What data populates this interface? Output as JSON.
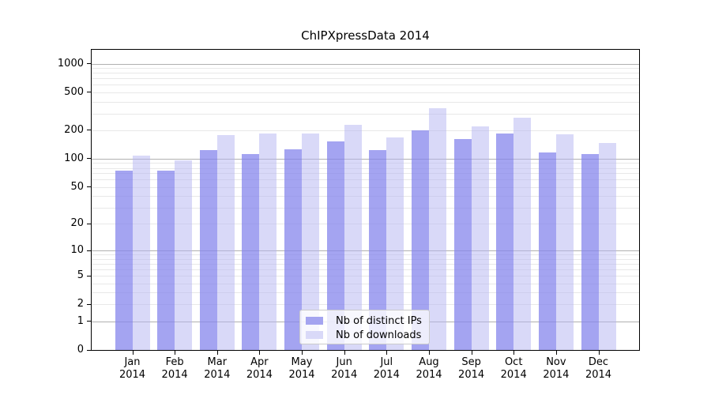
{
  "chart_data": {
    "type": "bar",
    "title": "ChIPXpressData 2014",
    "categories": [
      "Jan",
      "Feb",
      "Mar",
      "Apr",
      "May",
      "Jun",
      "Jul",
      "Aug",
      "Sep",
      "Oct",
      "Nov",
      "Dec"
    ],
    "x_tick_second_line": "2014",
    "series": [
      {
        "name": "Nb of distinct IPs",
        "values": [
          75,
          75,
          123,
          112,
          126,
          154,
          123,
          200,
          161,
          186,
          116,
          112
        ],
        "fill": "rgba(134,134,236,0.75)",
        "swatch": "#a4a4f0"
      },
      {
        "name": "Nb of downloads",
        "values": [
          109,
          96,
          178,
          184,
          184,
          230,
          168,
          340,
          218,
          273,
          181,
          147
        ],
        "fill": "rgba(180,180,242,0.5)",
        "swatch": "#d9d9f8"
      }
    ],
    "y_axis": {
      "scale": "log1p",
      "min": 0,
      "max": 1400,
      "tick_values": [
        0,
        1,
        2,
        5,
        10,
        20,
        50,
        100,
        200,
        500,
        1000
      ],
      "major_gridlines": [
        1,
        10,
        100,
        1000
      ],
      "minor_gridlines": [
        2,
        3,
        4,
        5,
        6,
        7,
        8,
        9,
        20,
        30,
        40,
        50,
        60,
        70,
        80,
        90,
        200,
        300,
        400,
        500,
        600,
        700,
        800,
        900
      ]
    },
    "grid": {
      "major_color": "#b0b0b0",
      "minor_color": "#e8e8e8"
    },
    "legend_position": "bottom-center",
    "axis_color": "#000000"
  }
}
